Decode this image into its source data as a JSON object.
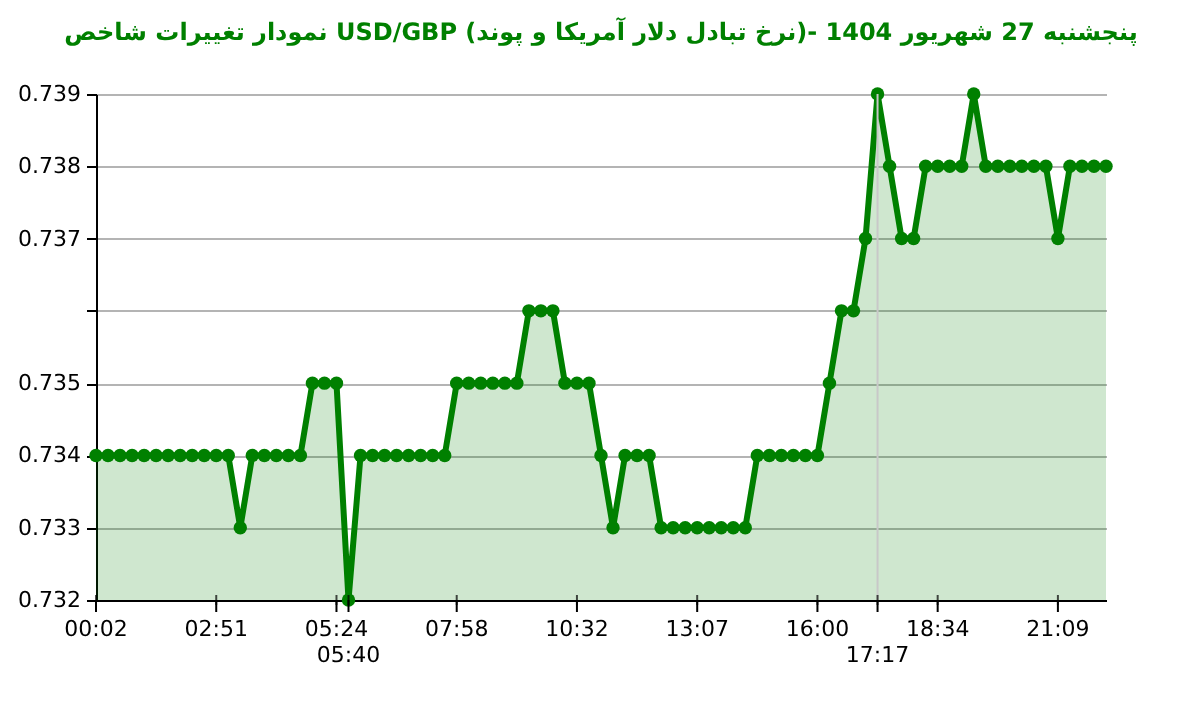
{
  "chart_data": {
    "type": "area",
    "title": "نمودار تغییرات شاخص USD/GBP (نرخ تبادل دلار آمریکا و پوند)- پنجشنبه  27 شهریور 1404",
    "categories": [
      "00:02",
      null,
      null,
      null,
      null,
      null,
      null,
      null,
      null,
      null,
      "02:51",
      null,
      null,
      null,
      null,
      null,
      null,
      null,
      null,
      null,
      "05:24",
      "05:40",
      null,
      null,
      null,
      null,
      null,
      null,
      null,
      null,
      "07:58",
      null,
      null,
      null,
      null,
      null,
      null,
      null,
      null,
      null,
      "10:32",
      null,
      null,
      null,
      null,
      null,
      null,
      null,
      null,
      null,
      "13:07",
      null,
      null,
      null,
      null,
      null,
      null,
      null,
      null,
      null,
      "16:00",
      null,
      null,
      null,
      null,
      "17:17",
      null,
      null,
      null,
      null,
      "18:34",
      null,
      null,
      null,
      null,
      null,
      null,
      null,
      null,
      null,
      "21:09",
      null,
      null,
      null,
      null
    ],
    "series": [
      {
        "color": "#008000",
        "values": [
          0.734,
          0.734,
          0.734,
          0.734,
          0.734,
          0.734,
          0.734,
          0.734,
          0.734,
          0.734,
          0.734,
          0.734,
          0.733,
          0.734,
          0.734,
          0.734,
          0.734,
          0.734,
          0.735,
          0.735,
          0.735,
          0.732,
          0.734,
          0.734,
          0.734,
          0.734,
          0.734,
          0.734,
          0.734,
          0.734,
          0.735,
          0.735,
          0.735,
          0.735,
          0.735,
          0.735,
          0.736,
          0.736,
          0.736,
          0.735,
          0.735,
          0.735,
          0.734,
          0.733,
          0.734,
          0.734,
          0.734,
          0.733,
          0.733,
          0.733,
          0.733,
          0.733,
          0.733,
          0.733,
          0.733,
          0.734,
          0.734,
          0.734,
          0.734,
          0.734,
          0.734,
          0.735,
          0.736,
          0.736,
          0.737,
          0.739,
          0.738,
          0.737,
          0.737,
          0.738,
          0.738,
          0.738,
          0.738,
          0.739,
          0.738,
          0.738,
          0.738,
          0.738,
          0.738,
          0.738,
          0.737,
          0.738,
          0.738,
          0.738,
          0.738
        ]
      }
    ],
    "ylim": [
      0.732,
      0.739
    ],
    "yticks": [
      0.732,
      0.733,
      0.734,
      0.735,
      {
        "value": 0.736,
        "label": null
      },
      0.737,
      0.738,
      0.739
    ],
    "grid": "y",
    "marker": "circle",
    "line_style": "solid",
    "ref_lines": [
      {
        "axis": "x",
        "value": "17:17",
        "color": "#c8c8c8"
      }
    ]
  }
}
